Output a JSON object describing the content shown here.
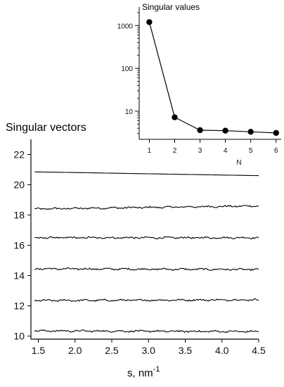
{
  "chart_data": [
    {
      "type": "line",
      "title": "Singular vectors",
      "xlabel": "s, nm",
      "xlabel_superscript": "-1",
      "ylabel": "",
      "xlim": [
        1.4,
        4.5
      ],
      "ylim": [
        9.8,
        23.0
      ],
      "xticks": [
        "1.5",
        "2.0",
        "2.5",
        "3.0",
        "3.5",
        "4.0",
        "4.5"
      ],
      "yticks": [
        "10",
        "12",
        "14",
        "16",
        "18",
        "20",
        "22"
      ],
      "grid": false,
      "series": [
        {
          "x_start": 1.45,
          "x_end": 4.5,
          "y_start": 20.85,
          "y_end": 20.6,
          "noise": 0.0
        },
        {
          "x_start": 1.45,
          "x_end": 4.5,
          "y_start": 18.4,
          "y_end": 18.6,
          "noise": 0.05
        },
        {
          "x_start": 1.45,
          "x_end": 4.5,
          "y_start": 16.5,
          "y_end": 16.5,
          "noise": 0.05
        },
        {
          "x_start": 1.45,
          "x_end": 4.5,
          "y_start": 14.45,
          "y_end": 14.4,
          "noise": 0.05
        },
        {
          "x_start": 1.45,
          "x_end": 4.5,
          "y_start": 12.35,
          "y_end": 12.4,
          "noise": 0.05
        },
        {
          "x_start": 1.45,
          "x_end": 4.5,
          "y_start": 10.35,
          "y_end": 10.3,
          "noise": 0.05
        }
      ]
    },
    {
      "type": "line",
      "title": "Singular values",
      "xlabel": "N",
      "ylabel": "",
      "yscale": "log",
      "xlim": [
        0.6,
        6.2
      ],
      "ylim": [
        2.2,
        2700
      ],
      "xticks": [
        "1",
        "2",
        "3",
        "4",
        "5",
        "6"
      ],
      "yticks": [
        "10",
        "100",
        "1000"
      ],
      "grid": false,
      "series": [
        {
          "x": [
            1,
            2,
            3,
            4,
            5,
            6
          ],
          "y": [
            1200,
            7.2,
            3.6,
            3.5,
            3.3,
            3.1
          ]
        }
      ]
    }
  ]
}
